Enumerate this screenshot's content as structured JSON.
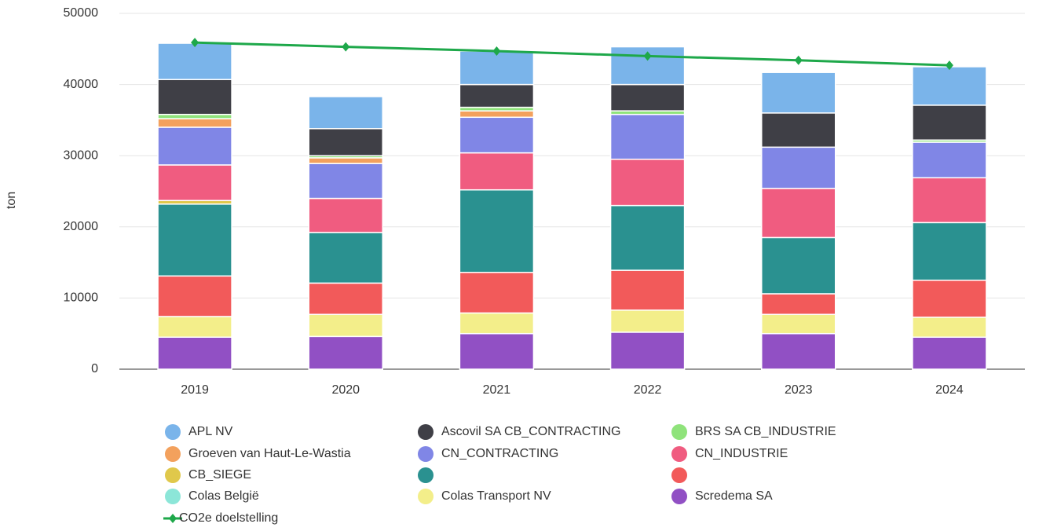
{
  "chart_data": {
    "type": "stacked-bar-line",
    "categories": [
      "2019",
      "2020",
      "2021",
      "2022",
      "2023",
      "2024"
    ],
    "y_label": "ton",
    "ylim": [
      0,
      50000
    ],
    "yticks": [
      0,
      10000,
      20000,
      30000,
      40000,
      50000
    ],
    "grid": true,
    "series": [
      {
        "name": "Scredema SA",
        "color": "#9150c4",
        "values": [
          4500,
          4600,
          5000,
          5200,
          5000,
          4500
        ]
      },
      {
        "name": "Colas Transport NV",
        "color": "#f3ee8a",
        "values": [
          2900,
          3100,
          2900,
          3100,
          2700,
          2800
        ]
      },
      {
        "name": "Colas België",
        "color": "#8ce6d8",
        "values": [
          0,
          0,
          0,
          0,
          0,
          0
        ]
      },
      {
        "name": null,
        "color": "#f25a5a",
        "values": [
          5700,
          4400,
          5700,
          5600,
          2900,
          5200
        ]
      },
      {
        "name": null,
        "color": "#2a9190",
        "values": [
          10100,
          7100,
          11600,
          9100,
          7900,
          8100
        ]
      },
      {
        "name": "CB_SIEGE",
        "color": "#e0c84b",
        "values": [
          500,
          0,
          0,
          0,
          0,
          0
        ]
      },
      {
        "name": "CN_INDUSTRIE",
        "color": "#f05c80",
        "values": [
          5000,
          4800,
          5200,
          6500,
          6900,
          6300
        ]
      },
      {
        "name": "CN_CONTRACTING",
        "color": "#8086e6",
        "values": [
          5300,
          4900,
          5000,
          6300,
          5800,
          5000
        ]
      },
      {
        "name": "Groeven van Haut-Le-Wastia",
        "color": "#f3a15d",
        "values": [
          1200,
          800,
          900,
          0,
          0,
          0
        ]
      },
      {
        "name": "BRS SA CB_INDUSTRIE",
        "color": "#8fe37b",
        "values": [
          600,
          300,
          500,
          500,
          0,
          300
        ]
      },
      {
        "name": "Ascovil SA CB_CONTRACTING",
        "color": "#3f3f46",
        "values": [
          4900,
          3800,
          3200,
          3700,
          4800,
          4900
        ]
      },
      {
        "name": "APL NV",
        "color": "#7ab4ea",
        "values": [
          5100,
          4500,
          4700,
          5300,
          5700,
          5400
        ]
      }
    ],
    "line": {
      "name": "CO2e doelstelling",
      "color": "#1ea84a",
      "values": [
        45900,
        45300,
        44700,
        44000,
        43400,
        42700
      ]
    }
  }
}
